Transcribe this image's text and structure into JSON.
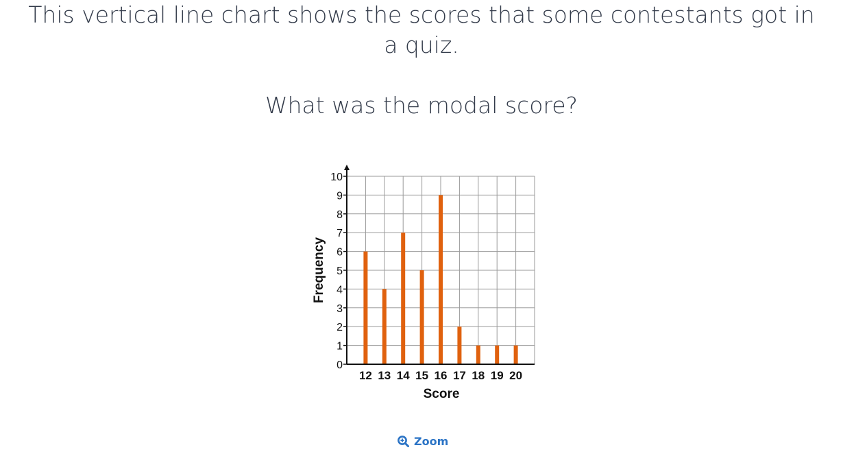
{
  "question": {
    "line1": "This vertical line chart shows the scores that some contestants got in",
    "line2": "a quiz.",
    "prompt": "What was the modal score?"
  },
  "zoom": {
    "label": "Zoom",
    "icon": "zoom-in-icon"
  },
  "colors": {
    "bar": "#e0610e",
    "grid": "#9a9a9a",
    "axis": "#111111",
    "accent": "#2a73c5"
  },
  "chart_data": {
    "type": "bar",
    "categories": [
      "12",
      "13",
      "14",
      "15",
      "16",
      "17",
      "18",
      "19",
      "20"
    ],
    "values": [
      6,
      4,
      7,
      5,
      9,
      2,
      1,
      1,
      1
    ],
    "title": "",
    "xlabel": "Score",
    "ylabel": "Frequency",
    "ylim": [
      0,
      10
    ],
    "yticks": [
      "0",
      "1",
      "2",
      "3",
      "4",
      "5",
      "6",
      "7",
      "8",
      "9",
      "10"
    ],
    "grid": true,
    "style": "vertical-line"
  }
}
